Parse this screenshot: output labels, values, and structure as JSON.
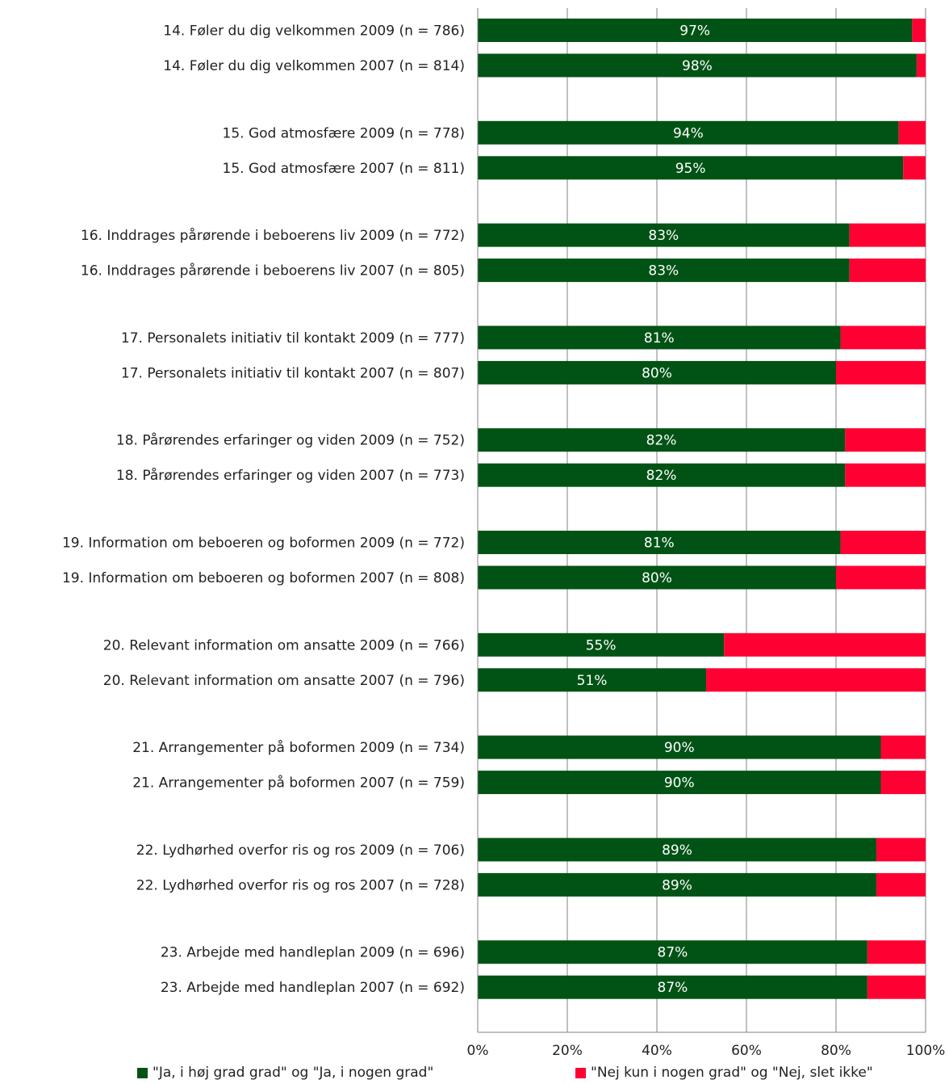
{
  "chart_data": {
    "type": "bar",
    "orientation": "horizontal",
    "stacked": true,
    "categories": [
      "14. Føler du dig velkommen 2009 (n = 786)",
      "14. Føler du dig velkommen 2007 (n = 814)",
      "15. God atmosfære 2009 (n = 778)",
      "15. God atmosfære 2007 (n = 811)",
      "16. Inddrages pårørende i beboerens liv 2009 (n = 772)",
      "16. Inddrages pårørende i beboerens liv 2007 (n = 805)",
      "17. Personalets initiativ til kontakt 2009 (n = 777)",
      "17. Personalets initiativ til kontakt 2007 (n = 807)",
      "18. Pårørendes erfaringer og viden 2009 (n = 752)",
      "18. Pårørendes erfaringer og viden 2007 (n = 773)",
      "19. Information om beboeren og boformen 2009 (n = 772)",
      "19. Information om beboeren og boformen 2007 (n = 808)",
      "20. Relevant information om ansatte 2009 (n = 766)",
      "20. Relevant information om ansatte 2007 (n = 796)",
      "21. Arrangementer på boformen 2009 (n = 734)",
      "21. Arrangementer på boformen 2007 (n = 759)",
      "22. Lydhørhed overfor ris og ros 2009 (n = 706)",
      "22. Lydhørhed overfor ris og ros 2007 (n = 728)",
      "23. Arbejde med handleplan 2009 (n = 696)",
      "23. Arbejde med handleplan 2007 (n = 692)"
    ],
    "series": [
      {
        "name": "\"Ja, i høj grad grad\" og \"Ja, i nogen grad\"",
        "color": "#005315",
        "values": [
          97,
          98,
          94,
          95,
          83,
          83,
          81,
          80,
          82,
          82,
          81,
          80,
          55,
          51,
          90,
          90,
          89,
          89,
          87,
          87
        ],
        "labels": [
          "97%",
          "98%",
          "94%",
          "95%",
          "83%",
          "83%",
          "81%",
          "80%",
          "82%",
          "82%",
          "81%",
          "80%",
          "55%",
          "51%",
          "90%",
          "90%",
          "89%",
          "89%",
          "87%",
          "87%"
        ]
      },
      {
        "name": "\"Nej kun i nogen grad\" og \"Nej, slet ikke\"",
        "color": "#ff0033",
        "values": [
          3,
          2,
          6,
          5,
          17,
          17,
          19,
          20,
          18,
          18,
          19,
          20,
          45,
          49,
          10,
          10,
          11,
          11,
          13,
          13
        ]
      }
    ],
    "xlim": [
      0,
      100
    ],
    "x_ticks": [
      "0%",
      "20%",
      "40%",
      "60%",
      "80%",
      "100%"
    ],
    "grid": true,
    "legend_position": "bottom"
  }
}
